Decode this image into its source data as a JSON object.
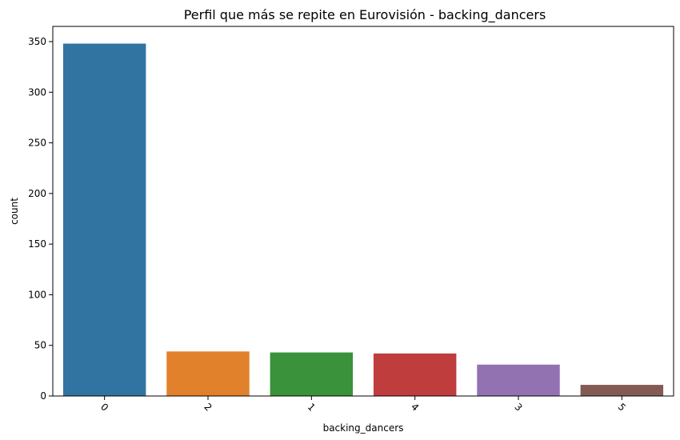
{
  "chart_data": {
    "type": "bar",
    "title": "Perfil que más se repite en Eurovisión - backing_dancers",
    "xlabel": "backing_dancers",
    "ylabel": "count",
    "categories": [
      "0",
      "2",
      "1",
      "4",
      "3",
      "5"
    ],
    "values": [
      348,
      44,
      43,
      42,
      31,
      11
    ],
    "colors": [
      "#3274a1",
      "#e1812c",
      "#3a923a",
      "#c03d3e",
      "#9372b2",
      "#845b53"
    ],
    "ylim": [
      0,
      365
    ],
    "yticks": [
      0,
      50,
      100,
      150,
      200,
      250,
      300,
      350
    ],
    "xtick_rotation": 45,
    "grid": false,
    "legend": "none"
  }
}
